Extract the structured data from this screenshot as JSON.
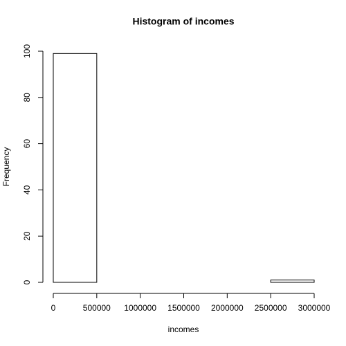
{
  "chart_data": {
    "type": "histogram",
    "title": "Histogram of incomes",
    "xlabel": "incomes",
    "ylabel": "Frequency",
    "bins": [
      0,
      500000,
      1000000,
      1500000,
      2000000,
      2500000,
      3000000
    ],
    "values": [
      99,
      0,
      0,
      0,
      0,
      1
    ],
    "color": "#ffffff",
    "xlim": [
      0,
      3000000
    ],
    "xticks": [
      0,
      500000,
      1000000,
      1500000,
      2000000,
      2500000,
      3000000
    ],
    "ylim": [
      0,
      100
    ],
    "yticks": [
      0,
      20,
      40,
      60,
      80,
      100
    ]
  }
}
